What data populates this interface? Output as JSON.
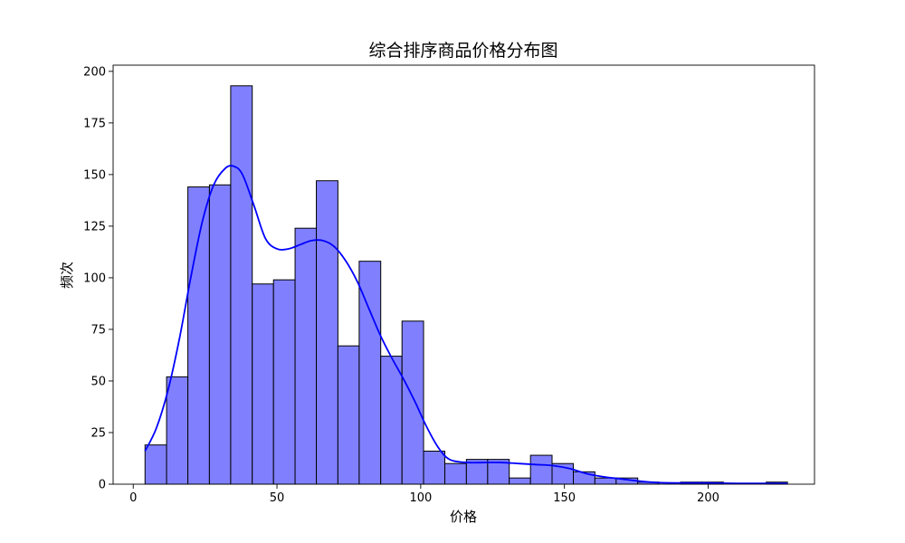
{
  "chart_data": {
    "type": "bar",
    "title": "综合排序商品价格分布图",
    "xlabel": "价格",
    "ylabel": "频次",
    "xlim": [
      -7,
      237
    ],
    "ylim": [
      0,
      203
    ],
    "xticks": [
      0,
      50,
      100,
      150,
      200
    ],
    "yticks": [
      0,
      25,
      50,
      75,
      100,
      125,
      150,
      175,
      200
    ],
    "grid": false,
    "bar_color": "#8080ff",
    "bar_edge_color": "#000000",
    "kde_color": "#0000ff",
    "bins": [
      {
        "x0": 4.1,
        "x1": 11.6,
        "count": 19
      },
      {
        "x0": 11.6,
        "x1": 19.0,
        "count": 52
      },
      {
        "x0": 19.0,
        "x1": 26.5,
        "count": 144
      },
      {
        "x0": 26.5,
        "x1": 33.9,
        "count": 145
      },
      {
        "x0": 33.9,
        "x1": 41.4,
        "count": 193
      },
      {
        "x0": 41.4,
        "x1": 48.8,
        "count": 97
      },
      {
        "x0": 48.8,
        "x1": 56.3,
        "count": 99
      },
      {
        "x0": 56.3,
        "x1": 63.7,
        "count": 124
      },
      {
        "x0": 63.7,
        "x1": 71.2,
        "count": 147
      },
      {
        "x0": 71.2,
        "x1": 78.6,
        "count": 67
      },
      {
        "x0": 78.6,
        "x1": 86.1,
        "count": 108
      },
      {
        "x0": 86.1,
        "x1": 93.5,
        "count": 62
      },
      {
        "x0": 93.5,
        "x1": 101.0,
        "count": 79
      },
      {
        "x0": 101.0,
        "x1": 108.4,
        "count": 16
      },
      {
        "x0": 108.4,
        "x1": 115.9,
        "count": 10
      },
      {
        "x0": 115.9,
        "x1": 123.3,
        "count": 12
      },
      {
        "x0": 123.3,
        "x1": 130.8,
        "count": 12
      },
      {
        "x0": 130.8,
        "x1": 138.2,
        "count": 3
      },
      {
        "x0": 138.2,
        "x1": 145.7,
        "count": 14
      },
      {
        "x0": 145.7,
        "x1": 153.1,
        "count": 10
      },
      {
        "x0": 153.1,
        "x1": 160.6,
        "count": 6
      },
      {
        "x0": 160.6,
        "x1": 168.0,
        "count": 3
      },
      {
        "x0": 168.0,
        "x1": 175.5,
        "count": 3
      },
      {
        "x0": 175.5,
        "x1": 182.9,
        "count": 1
      },
      {
        "x0": 182.9,
        "x1": 190.4,
        "count": 0
      },
      {
        "x0": 190.4,
        "x1": 197.8,
        "count": 1
      },
      {
        "x0": 197.8,
        "x1": 205.3,
        "count": 1
      },
      {
        "x0": 205.3,
        "x1": 212.7,
        "count": 0
      },
      {
        "x0": 212.7,
        "x1": 220.2,
        "count": 0
      },
      {
        "x0": 220.2,
        "x1": 227.6,
        "count": 1
      }
    ],
    "kde": {
      "x": [
        4.1,
        8,
        12,
        16,
        20,
        24,
        28,
        32,
        35,
        38,
        42,
        46,
        50,
        54,
        58,
        62,
        66,
        70,
        74,
        78,
        82,
        86,
        90,
        94,
        98,
        102,
        106,
        110,
        116,
        122,
        128,
        134,
        140,
        146,
        152,
        158,
        164,
        170,
        176,
        182,
        190,
        200,
        210,
        220,
        227.6
      ],
      "y": [
        16,
        27,
        45,
        70,
        100,
        127,
        145,
        153,
        154,
        150,
        135,
        119,
        114,
        114,
        116,
        118,
        118,
        115,
        108,
        98,
        85,
        72,
        61,
        51,
        40,
        28,
        18,
        12,
        10.5,
        10.5,
        10.5,
        10,
        9.5,
        9,
        7.5,
        5,
        3.5,
        2.5,
        1.5,
        0.8,
        0.6,
        0.6,
        0.4,
        0.4,
        0.3
      ]
    }
  }
}
